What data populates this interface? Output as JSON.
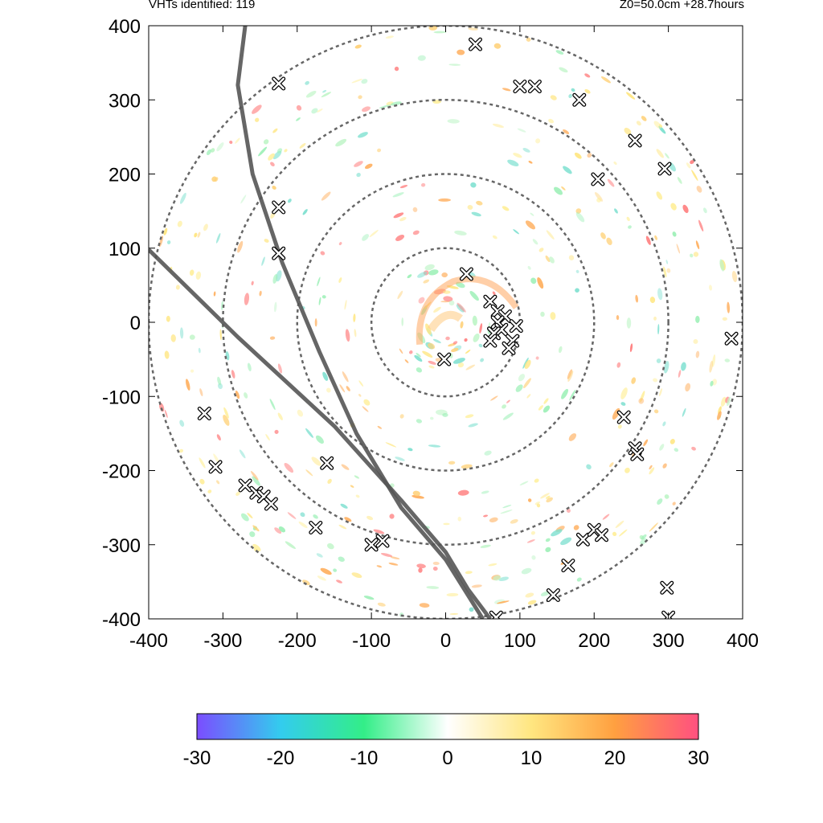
{
  "header": {
    "vht_count_label": "VHTs identified: 119",
    "run_info_label": "Z0=50.0cm  +28.7hours"
  },
  "chart_data": {
    "type": "heatmap",
    "title": "",
    "xlabel": "",
    "ylabel": "",
    "xlim": [
      -400,
      400
    ],
    "ylim": [
      -400,
      400
    ],
    "x_ticks": [
      -400,
      -300,
      -200,
      -100,
      0,
      100,
      200,
      300,
      400
    ],
    "y_ticks": [
      -400,
      -300,
      -200,
      -100,
      0,
      100,
      200,
      300,
      400
    ],
    "range_rings_radius": [
      100,
      200,
      300,
      400
    ],
    "colorbar": {
      "min": -30,
      "max": 30,
      "ticks": [
        -30,
        -20,
        -10,
        0,
        10,
        20,
        30
      ],
      "colors": [
        "#7b4dff",
        "#33ccee",
        "#33ee88",
        "#ffffff",
        "#ffe680",
        "#ffa040",
        "#ff5080"
      ]
    },
    "track_lines": [
      {
        "points": [
          [
            -400,
            98
          ],
          [
            -280,
            -20
          ],
          [
            -150,
            -140
          ],
          [
            -60,
            -240
          ],
          [
            0,
            -310
          ],
          [
            30,
            -360
          ],
          [
            60,
            -400
          ]
        ]
      },
      {
        "points": [
          [
            -270,
            400
          ],
          [
            -280,
            320
          ],
          [
            -260,
            200
          ],
          [
            -220,
            80
          ],
          [
            -170,
            -40
          ],
          [
            -120,
            -150
          ],
          [
            -60,
            -250
          ],
          [
            0,
            -320
          ],
          [
            50,
            -400
          ]
        ]
      }
    ],
    "vht_markers": [
      [
        28,
        65
      ],
      [
        60,
        28
      ],
      [
        70,
        15
      ],
      [
        80,
        8
      ],
      [
        70,
        0
      ],
      [
        95,
        -5
      ],
      [
        75,
        -10
      ],
      [
        65,
        -15
      ],
      [
        90,
        -25
      ],
      [
        85,
        -35
      ],
      [
        60,
        -25
      ],
      [
        -2,
        -50
      ],
      [
        -225,
        155
      ],
      [
        -225,
        93
      ],
      [
        -225,
        322
      ],
      [
        40,
        375
      ],
      [
        100,
        318
      ],
      [
        120,
        318
      ],
      [
        180,
        300
      ],
      [
        255,
        245
      ],
      [
        205,
        193
      ],
      [
        295,
        207
      ],
      [
        385,
        -22
      ],
      [
        -325,
        -123
      ],
      [
        -310,
        -195
      ],
      [
        -270,
        -220
      ],
      [
        -255,
        -230
      ],
      [
        -245,
        -235
      ],
      [
        -235,
        -245
      ],
      [
        -175,
        -277
      ],
      [
        -160,
        -190
      ],
      [
        -100,
        -300
      ],
      [
        -85,
        -295
      ],
      [
        240,
        -128
      ],
      [
        255,
        -170
      ],
      [
        258,
        -178
      ],
      [
        185,
        -293
      ],
      [
        200,
        -280
      ],
      [
        210,
        -287
      ],
      [
        165,
        -328
      ],
      [
        145,
        -368
      ],
      [
        298,
        -358
      ],
      [
        300,
        -398
      ],
      [
        68,
        -398
      ]
    ]
  }
}
